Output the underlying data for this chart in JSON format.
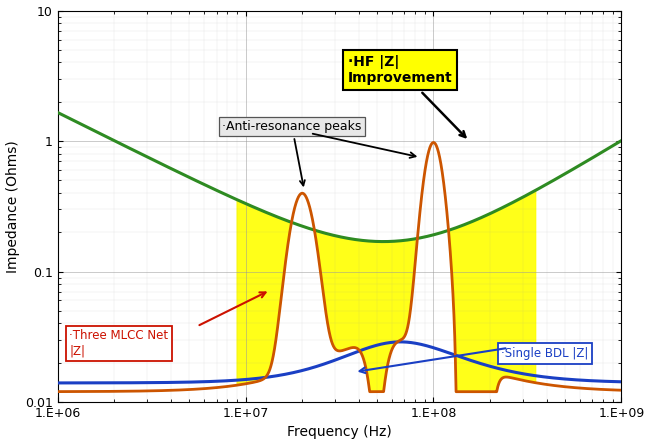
{
  "xlabel": "Frequency (Hz)",
  "ylabel": "Impedance (Ohms)",
  "background_color": "#ffffff",
  "grid_color": "#999999",
  "colors": {
    "blue": "#1a3fc4",
    "red": "#cc1100",
    "orange": "#cc5500",
    "green": "#2e8b22",
    "yellow_fill": "#ffff00"
  },
  "xtick_labels": [
    "1.E+06",
    "1.E+07",
    "1.E+08",
    "1.E+09"
  ],
  "ytick_labels": [
    "0.01",
    "0.1",
    "1",
    "10"
  ],
  "hf_label": "·HF |Z|\nImprovement",
  "anti_res_label": "·Anti-resonance peaks",
  "three_mlcc_label": "·Three MLCC Net\n|Z|",
  "single_bdl_label": "·Single BDL |Z|"
}
